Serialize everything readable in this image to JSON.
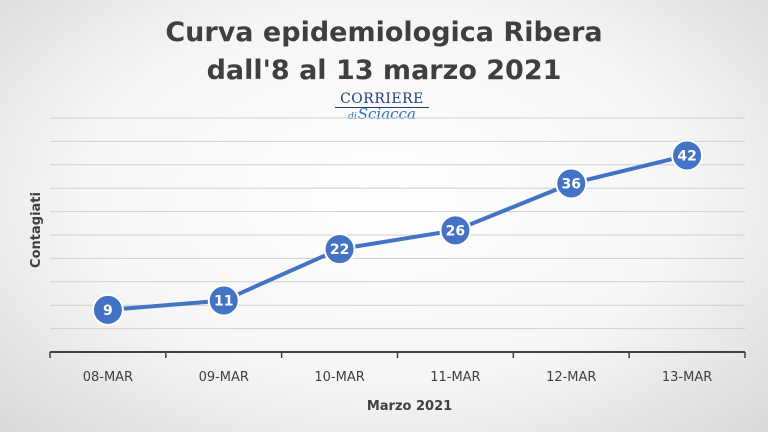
{
  "title_lines": [
    "Curva epidemiologica Ribera",
    "dall'8 al 13 marzo 2021"
  ],
  "logo": {
    "top": "CORRIERE",
    "di": "di",
    "bottom": "Sciacca"
  },
  "chart_data": {
    "type": "line",
    "title": "Curva epidemiologica Ribera dall'8 al 13 marzo 2021",
    "categories": [
      "08-MAR",
      "09-MAR",
      "10-MAR",
      "11-MAR",
      "12-MAR",
      "13-MAR"
    ],
    "series": [
      {
        "values": [
          9,
          11,
          22,
          26,
          36,
          42
        ]
      }
    ],
    "xlabel": "Marzo 2021",
    "ylabel": "Contagiati",
    "ylim": [
      0,
      50
    ],
    "grid": true,
    "data_labels": true,
    "colors": {
      "series": "#4472c4",
      "grid": "#cfcfcf",
      "axis": "#404040"
    }
  }
}
